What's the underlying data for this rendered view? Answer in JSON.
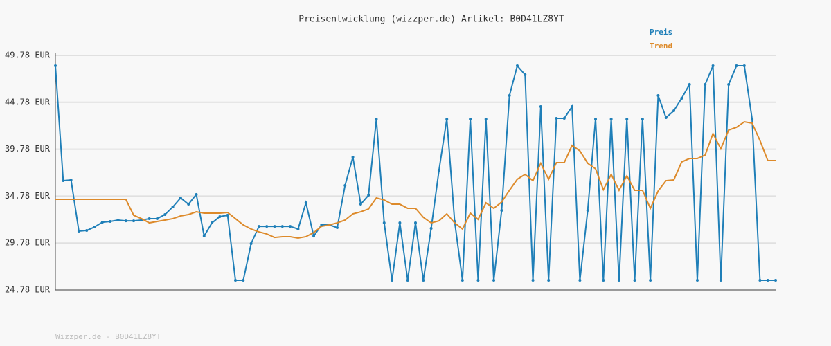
{
  "chart_data": {
    "type": "line",
    "title": "Preisentwicklung (wizzper.de) Artikel: B0D41LZ8YT",
    "footer": "Wizzper.de - B0D41LZ8YT",
    "ylim": [
      24.78,
      49.78
    ],
    "yticks": [
      {
        "value": 24.78,
        "label": "24.78 EUR"
      },
      {
        "value": 29.78,
        "label": "29.78 EUR"
      },
      {
        "value": 34.78,
        "label": "34.78 EUR"
      },
      {
        "value": 39.78,
        "label": "39.78 EUR"
      },
      {
        "value": 44.78,
        "label": "44.78 EUR"
      },
      {
        "value": 49.78,
        "label": "49.78 EUR"
      }
    ],
    "grid": true,
    "series": [
      {
        "name": "Preis",
        "color": "#1f7fb8",
        "markers": true,
        "values": [
          48.67,
          36.43,
          36.5,
          31.05,
          31.12,
          31.49,
          32.0,
          32.08,
          32.23,
          32.15,
          32.15,
          32.23,
          32.38,
          32.38,
          32.82,
          33.63,
          34.59,
          33.92,
          34.96,
          30.53,
          31.93,
          32.6,
          32.74,
          25.81,
          25.81,
          29.72,
          31.56,
          31.56,
          31.56,
          31.56,
          31.56,
          31.27,
          34.07,
          30.53,
          31.71,
          31.71,
          31.42,
          35.92,
          38.94,
          33.92,
          34.88,
          42.99,
          31.93,
          25.81,
          31.93,
          25.81,
          31.93,
          25.81,
          31.34,
          37.54,
          42.99,
          32.08,
          25.81,
          42.99,
          25.81,
          42.99,
          25.81,
          33.26,
          45.5,
          48.67,
          47.72,
          25.81,
          44.32,
          25.81,
          43.07,
          43.07,
          44.32,
          25.81,
          33.26,
          42.99,
          25.81,
          42.99,
          25.81,
          42.99,
          25.81,
          42.99,
          25.81,
          45.5,
          43.14,
          43.88,
          45.21,
          46.68,
          25.81,
          46.68,
          48.67,
          25.81,
          46.68,
          48.67,
          48.67,
          42.99,
          25.81,
          25.81,
          25.81
        ]
      },
      {
        "name": "Trend",
        "color": "#dd8a2a",
        "markers": false,
        "values": [
          34.44,
          34.44,
          34.44,
          34.44,
          34.44,
          34.44,
          34.44,
          34.44,
          34.44,
          34.44,
          32.74,
          32.38,
          31.93,
          32.08,
          32.23,
          32.38,
          32.67,
          32.82,
          33.11,
          32.97,
          32.97,
          32.97,
          33.04,
          32.38,
          31.71,
          31.27,
          30.97,
          30.75,
          30.38,
          30.46,
          30.46,
          30.31,
          30.46,
          30.9,
          31.56,
          31.71,
          31.93,
          32.23,
          32.89,
          33.11,
          33.41,
          34.59,
          34.37,
          33.92,
          33.92,
          33.48,
          33.48,
          32.52,
          31.93,
          32.15,
          32.89,
          31.93,
          31.27,
          32.97,
          32.3,
          34.07,
          33.48,
          34.15,
          35.4,
          36.58,
          37.1,
          36.43,
          38.28,
          36.58,
          38.35,
          38.35,
          40.19,
          39.6,
          38.28,
          37.69,
          35.47,
          37.1,
          35.4,
          36.95,
          35.4,
          35.4,
          33.48,
          35.33,
          36.43,
          36.51,
          38.42,
          38.79,
          38.79,
          39.16,
          41.45,
          39.82,
          41.82,
          42.11,
          42.7,
          42.55,
          40.71,
          38.57,
          38.57
        ]
      }
    ]
  }
}
